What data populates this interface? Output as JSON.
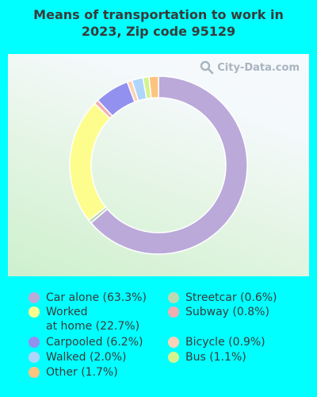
{
  "title_line1": "Means of transportation to work in",
  "title_line2": "2023, Zip code 95129",
  "watermark": "City-Data.com",
  "chart_data": {
    "type": "pie",
    "title": "Means of transportation to work in 2023, Zip code 95129",
    "slices": [
      {
        "label": "Car alone (63.3%)",
        "value": 63.3,
        "color": "#bba9da"
      },
      {
        "label": "Streetcar (0.6%)",
        "value": 0.6,
        "color": "#bcd9b0"
      },
      {
        "label": "Worked\nat home (22.7%)",
        "value": 22.7,
        "color": "#fdfd8e"
      },
      {
        "label": "Subway (0.8%)",
        "value": 0.8,
        "color": "#f1aeb0"
      },
      {
        "label": "Carpooled (6.2%)",
        "value": 6.2,
        "color": "#9291ef"
      },
      {
        "label": "Bicycle (0.9%)",
        "value": 0.9,
        "color": "#fcd2b6"
      },
      {
        "label": "Walked (2.0%)",
        "value": 2.0,
        "color": "#afd6fa"
      },
      {
        "label": "Bus (1.1%)",
        "value": 1.1,
        "color": "#d3f391"
      },
      {
        "label": "Other (1.7%)",
        "value": 1.7,
        "color": "#fbc47f"
      }
    ],
    "ring_order": [
      "Car alone (63.3%)",
      "Streetcar (0.6%)",
      "Worked\nat home (22.7%)",
      "Subway (0.8%)",
      "Carpooled (6.2%)",
      "Bicycle (0.9%)",
      "Walked (2.0%)",
      "Bus (1.1%)",
      "Other (1.7%)"
    ]
  }
}
